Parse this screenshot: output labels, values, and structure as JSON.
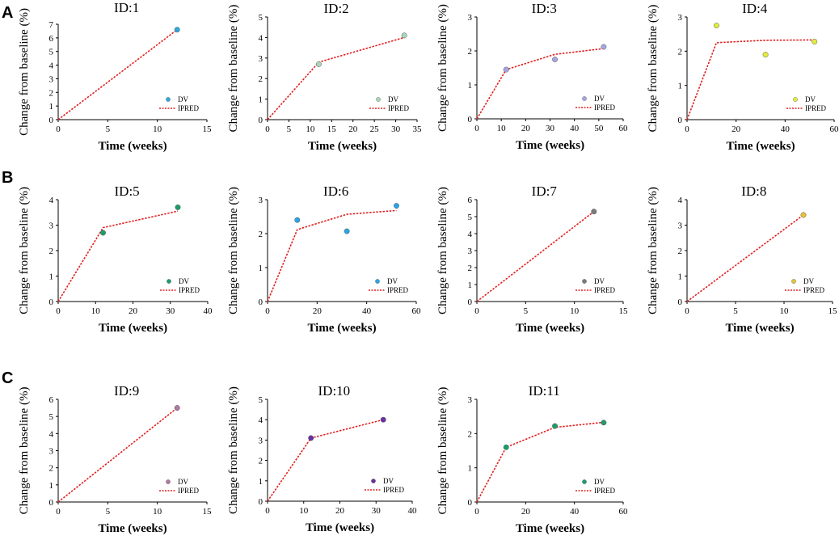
{
  "figure": {
    "panel_letters": [
      "A",
      "B",
      "C"
    ],
    "dv_label": "DV",
    "ipred_label": "IPRED",
    "ipred_color": "#e0201f"
  },
  "chart_data": [
    {
      "type": "line",
      "title": "ID:1",
      "xlabel": "Time (weeks)",
      "ylabel": "Change from baseline (%)",
      "xlim": [
        0,
        15
      ],
      "xticks": [
        0,
        5,
        10,
        15
      ],
      "ylim": [
        0,
        7
      ],
      "yticks": [
        0,
        1,
        2,
        3,
        4,
        5,
        6,
        7
      ],
      "dv_color": "#29a9e1",
      "series": [
        {
          "name": "DV",
          "x": [
            12
          ],
          "y": [
            6.6
          ]
        },
        {
          "name": "IPRED",
          "x": [
            0,
            12
          ],
          "y": [
            0,
            6.6
          ]
        }
      ]
    },
    {
      "type": "line",
      "title": "ID:2",
      "xlabel": "Time (weeks)",
      "ylabel": "Change from baseline (%)",
      "xlim": [
        0,
        35
      ],
      "xticks": [
        0,
        5,
        10,
        15,
        20,
        25,
        30,
        35
      ],
      "ylim": [
        0,
        5
      ],
      "yticks": [
        0,
        1,
        2,
        3,
        4,
        5
      ],
      "dv_color": "#a9d8b8",
      "series": [
        {
          "name": "DV",
          "x": [
            12,
            32
          ],
          "y": [
            2.7,
            4.1
          ]
        },
        {
          "name": "IPRED",
          "x": [
            0,
            12,
            32
          ],
          "y": [
            0,
            2.8,
            4.0
          ]
        }
      ]
    },
    {
      "type": "line",
      "title": "ID:3",
      "xlabel": "Time (weeks)",
      "ylabel": "Change from baseline (%)",
      "xlim": [
        0,
        60
      ],
      "xticks": [
        0,
        10,
        20,
        30,
        40,
        50,
        60
      ],
      "ylim": [
        0,
        3
      ],
      "yticks": [
        0,
        1,
        2,
        3
      ],
      "dv_color": "#a6a6e3",
      "series": [
        {
          "name": "DV",
          "x": [
            12,
            32,
            52
          ],
          "y": [
            1.45,
            1.75,
            2.12
          ]
        },
        {
          "name": "IPRED",
          "x": [
            0,
            12,
            32,
            52
          ],
          "y": [
            0,
            1.45,
            1.9,
            2.07
          ]
        }
      ]
    },
    {
      "type": "line",
      "title": "ID:4",
      "xlabel": "Time (weeks)",
      "ylabel": "Change from baseline (%)",
      "xlim": [
        0,
        60
      ],
      "xticks": [
        0,
        20,
        40,
        60
      ],
      "ylim": [
        0,
        3
      ],
      "yticks": [
        0,
        1,
        2,
        3
      ],
      "dv_color": "#e3ec3a",
      "series": [
        {
          "name": "DV",
          "x": [
            12,
            32,
            52
          ],
          "y": [
            2.75,
            1.9,
            2.28
          ]
        },
        {
          "name": "IPRED",
          "x": [
            0,
            12,
            32,
            52
          ],
          "y": [
            0,
            2.25,
            2.32,
            2.33
          ]
        }
      ]
    },
    {
      "type": "line",
      "title": "ID:5",
      "xlabel": "Time (weeks)",
      "ylabel": "Change from baseline (%)",
      "xlim": [
        0,
        40
      ],
      "xticks": [
        0,
        10,
        20,
        30,
        40
      ],
      "ylim": [
        0,
        4
      ],
      "yticks": [
        0,
        1,
        2,
        3,
        4
      ],
      "dv_color": "#1a9e6a",
      "series": [
        {
          "name": "DV",
          "x": [
            12,
            32
          ],
          "y": [
            2.7,
            3.7
          ]
        },
        {
          "name": "IPRED",
          "x": [
            0,
            12,
            32
          ],
          "y": [
            0,
            2.9,
            3.55
          ]
        }
      ]
    },
    {
      "type": "line",
      "title": "ID:6",
      "xlabel": "Time (weeks)",
      "ylabel": "Change from baseline (%)",
      "xlim": [
        0,
        60
      ],
      "xticks": [
        0,
        20,
        40,
        60
      ],
      "ylim": [
        0,
        3
      ],
      "yticks": [
        0,
        1,
        2,
        3
      ],
      "dv_color": "#27a6e5",
      "series": [
        {
          "name": "DV",
          "x": [
            12,
            32,
            52
          ],
          "y": [
            2.4,
            2.07,
            2.82
          ]
        },
        {
          "name": "IPRED",
          "x": [
            0,
            12,
            32,
            52
          ],
          "y": [
            0,
            2.12,
            2.57,
            2.68
          ]
        }
      ]
    },
    {
      "type": "line",
      "title": "ID:7",
      "xlabel": "Time (weeks)",
      "ylabel": "Change from baseline (%)",
      "xlim": [
        0,
        15
      ],
      "xticks": [
        0,
        5,
        10,
        15
      ],
      "ylim": [
        0,
        6
      ],
      "yticks": [
        0,
        1,
        2,
        3,
        4,
        5,
        6
      ],
      "dv_color": "#7a7a7a",
      "series": [
        {
          "name": "DV",
          "x": [
            12
          ],
          "y": [
            5.3
          ]
        },
        {
          "name": "IPRED",
          "x": [
            0,
            12
          ],
          "y": [
            0,
            5.3
          ]
        }
      ]
    },
    {
      "type": "line",
      "title": "ID:8",
      "xlabel": "Time (weeks)",
      "ylabel": "Change from baseline (%)",
      "xlim": [
        0,
        15
      ],
      "xticks": [
        0,
        5,
        10,
        15
      ],
      "ylim": [
        0,
        4
      ],
      "yticks": [
        0,
        1,
        2,
        3,
        4
      ],
      "dv_color": "#e9c232",
      "series": [
        {
          "name": "DV",
          "x": [
            12
          ],
          "y": [
            3.4
          ]
        },
        {
          "name": "IPRED",
          "x": [
            0,
            12
          ],
          "y": [
            0,
            3.4
          ]
        }
      ]
    },
    {
      "type": "line",
      "title": "ID:9",
      "xlabel": "Time (weeks)",
      "ylabel": "Change from baseline (%)",
      "xlim": [
        0,
        15
      ],
      "xticks": [
        0,
        5,
        10,
        15
      ],
      "ylim": [
        0,
        6
      ],
      "yticks": [
        0,
        1,
        2,
        3,
        4,
        5,
        6
      ],
      "dv_color": "#b07aa1",
      "series": [
        {
          "name": "DV",
          "x": [
            12
          ],
          "y": [
            5.5
          ]
        },
        {
          "name": "IPRED",
          "x": [
            0,
            12
          ],
          "y": [
            0,
            5.5
          ]
        }
      ]
    },
    {
      "type": "line",
      "title": "ID:10",
      "xlabel": "Time (weeks)",
      "ylabel": "Change from baseline (%)",
      "xlim": [
        0,
        40
      ],
      "xticks": [
        0,
        10,
        20,
        30,
        40
      ],
      "ylim": [
        0,
        5
      ],
      "yticks": [
        0,
        1,
        2,
        3,
        4,
        5
      ],
      "dv_color": "#6a2fa5",
      "series": [
        {
          "name": "DV",
          "x": [
            12,
            32
          ],
          "y": [
            3.1,
            4.0
          ]
        },
        {
          "name": "IPRED",
          "x": [
            0,
            12,
            32
          ],
          "y": [
            0,
            3.1,
            4.0
          ]
        }
      ]
    },
    {
      "type": "line",
      "title": "ID:11",
      "xlabel": "Time (weeks)",
      "ylabel": "Change from baseline (%)",
      "xlim": [
        0,
        60
      ],
      "xticks": [
        0,
        20,
        40,
        60
      ],
      "ylim": [
        0,
        3
      ],
      "yticks": [
        0,
        1,
        2,
        3
      ],
      "dv_color": "#1a9e6a",
      "series": [
        {
          "name": "DV",
          "x": [
            12,
            32,
            52
          ],
          "y": [
            1.6,
            2.22,
            2.32
          ]
        },
        {
          "name": "IPRED",
          "x": [
            0,
            12,
            32,
            52
          ],
          "y": [
            0,
            1.6,
            2.18,
            2.33
          ]
        }
      ]
    }
  ]
}
